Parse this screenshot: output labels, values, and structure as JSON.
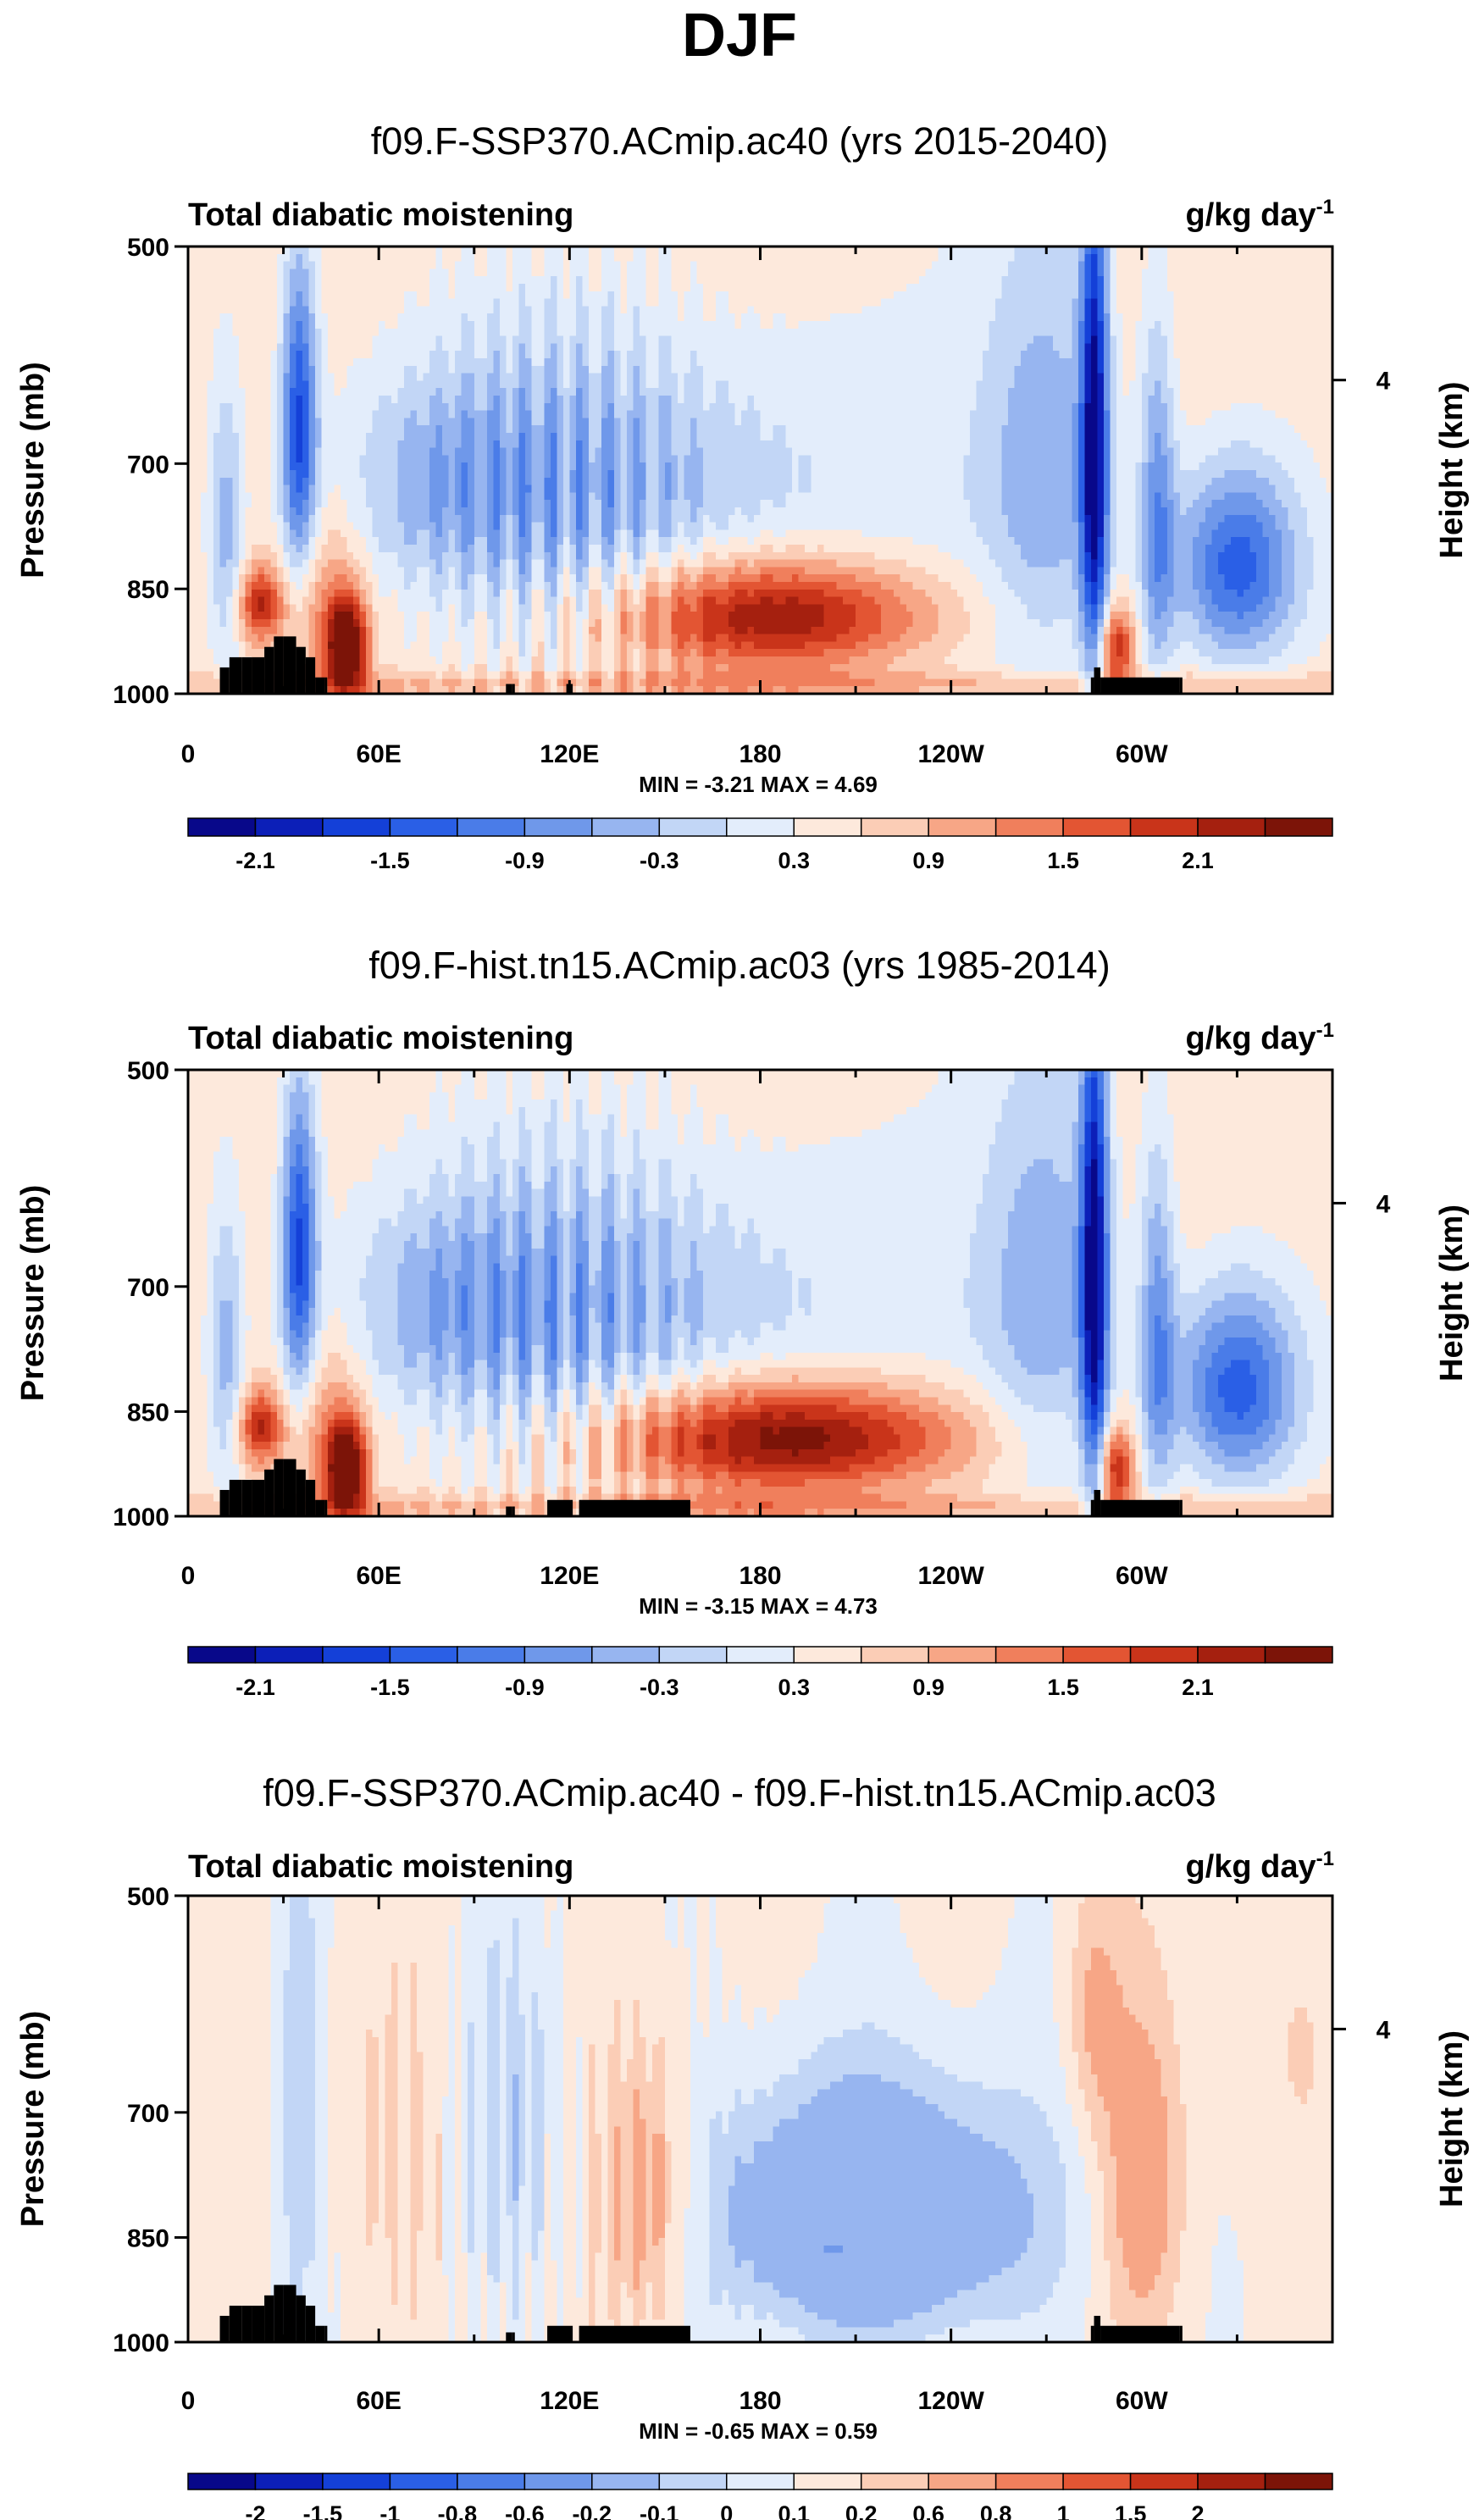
{
  "title": "DJF",
  "colors": {
    "palette": [
      "#08088a",
      "#0c1fb8",
      "#1440d8",
      "#2a5fe6",
      "#4a7ce8",
      "#6f98ea",
      "#97b5f0",
      "#c2d6f6",
      "#e3edfb",
      "#fde9dc",
      "#fbcdb6",
      "#f7a686",
      "#f07f5c",
      "#e35533",
      "#c9341a",
      "#a5200f",
      "#7c1408"
    ],
    "land": "#000000",
    "frame": "#000000"
  },
  "chart_data": [
    {
      "type": "contour",
      "title": "f09.F-SSP370.ACmip.ac40 (yrs 2015-2040)",
      "left_label": "Total diabatic moistening",
      "right_label": "g/kg day",
      "right_label_exp": "-1",
      "ylabel": "Pressure (mb)",
      "y2label": "Height (km)",
      "y_ticks": [
        "500",
        "700",
        "850",
        "1000"
      ],
      "y_tick_values": [
        500,
        700,
        850,
        1000
      ],
      "y2_ticks": [
        "4"
      ],
      "x_ticks": [
        "0",
        "60E",
        "120E",
        "180",
        "120W",
        "60W"
      ],
      "x_tick_values": [
        0,
        60,
        120,
        180,
        240,
        300
      ],
      "xlim": [
        0,
        360
      ],
      "ylim": [
        1000,
        500
      ],
      "min_max_text": "MIN = -3.21  MAX =  4.69",
      "min": -3.21,
      "max": 4.69,
      "colorbar_labels": [
        "-2.1",
        "-1.5",
        "-0.9",
        "-0.3",
        "0.3",
        "0.9",
        "1.5",
        "2.1"
      ],
      "levels": [
        -2.4,
        -2.1,
        -1.8,
        -1.5,
        -1.2,
        -0.9,
        -0.6,
        -0.3,
        0,
        0.3,
        0.6,
        0.9,
        1.2,
        1.5,
        1.8,
        2.1,
        2.4
      ],
      "features": [
        {
          "lon": 35,
          "p": 660,
          "value": -2.0
        },
        {
          "lon": 23,
          "p": 870,
          "value": 1.6
        },
        {
          "lon": 50,
          "p": 930,
          "value": 2.6
        },
        {
          "lon": 185,
          "p": 885,
          "value": 2.2
        },
        {
          "lon": 285,
          "p": 690,
          "value": -2.6
        },
        {
          "lon": 330,
          "p": 820,
          "value": -1.9
        },
        {
          "lon": 110,
          "p": 730,
          "value": -1.2
        }
      ]
    },
    {
      "type": "contour",
      "title": "f09.F-hist.tn15.ACmip.ac03 (yrs 1985-2014)",
      "left_label": "Total diabatic moistening",
      "right_label": "g/kg day",
      "right_label_exp": "-1",
      "ylabel": "Pressure (mb)",
      "y2label": "Height (km)",
      "y_ticks": [
        "500",
        "700",
        "850",
        "1000"
      ],
      "y_tick_values": [
        500,
        700,
        850,
        1000
      ],
      "y2_ticks": [
        "4"
      ],
      "x_ticks": [
        "0",
        "60E",
        "120E",
        "180",
        "120W",
        "60W"
      ],
      "x_tick_values": [
        0,
        60,
        120,
        180,
        240,
        300
      ],
      "xlim": [
        0,
        360
      ],
      "ylim": [
        1000,
        500
      ],
      "min_max_text": "MIN = -3.15  MAX =  4.73",
      "min": -3.15,
      "max": 4.73,
      "colorbar_labels": [
        "-2.1",
        "-1.5",
        "-0.9",
        "-0.3",
        "0.3",
        "0.9",
        "1.5",
        "2.1"
      ],
      "levels": [
        -2.4,
        -2.1,
        -1.8,
        -1.5,
        -1.2,
        -0.9,
        -0.6,
        -0.3,
        0,
        0.3,
        0.6,
        0.9,
        1.2,
        1.5,
        1.8,
        2.1,
        2.4
      ],
      "features": [
        {
          "lon": 35,
          "p": 660,
          "value": -2.0
        },
        {
          "lon": 23,
          "p": 870,
          "value": 1.6
        },
        {
          "lon": 50,
          "p": 930,
          "value": 2.6
        },
        {
          "lon": 190,
          "p": 880,
          "value": 2.5
        },
        {
          "lon": 285,
          "p": 690,
          "value": -2.6
        },
        {
          "lon": 330,
          "p": 820,
          "value": -1.9
        },
        {
          "lon": 110,
          "p": 730,
          "value": -1.2
        }
      ]
    },
    {
      "type": "contour",
      "title": "f09.F-SSP370.ACmip.ac40 - f09.F-hist.tn15.ACmip.ac03",
      "left_label": "Total diabatic moistening",
      "right_label": "g/kg day",
      "right_label_exp": "-1",
      "ylabel": "Pressure (mb)",
      "y2label": "Height (km)",
      "y_ticks": [
        "500",
        "700",
        "850",
        "1000"
      ],
      "y_tick_values": [
        500,
        700,
        850,
        1000
      ],
      "y2_ticks": [
        "4"
      ],
      "x_ticks": [
        "0",
        "60E",
        "120E",
        "180",
        "120W",
        "60W"
      ],
      "x_tick_values": [
        0,
        60,
        120,
        180,
        240,
        300
      ],
      "xlim": [
        0,
        360
      ],
      "ylim": [
        1000,
        500
      ],
      "min_max_text": "MIN = -0.65  MAX =  0.59",
      "min": -0.65,
      "max": 0.59,
      "colorbar_labels": [
        "-2",
        "-1.5",
        "-1",
        "-0.8",
        "-0.6",
        "-0.2",
        "-0.1",
        "0",
        "0.1",
        "0.2",
        "0.6",
        "0.8",
        "1",
        "1.5",
        "2"
      ],
      "levels": [
        -2.5,
        -2,
        -1.5,
        -1,
        -0.8,
        -0.6,
        -0.2,
        -0.1,
        0,
        0.1,
        0.2,
        0.6,
        0.8,
        1,
        1.5,
        2,
        2.5
      ],
      "features": [
        {
          "lon": 215,
          "p": 820,
          "value": -0.6
        },
        {
          "lon": 145,
          "p": 800,
          "value": 0.3
        },
        {
          "lon": 300,
          "p": 780,
          "value": 0.3
        },
        {
          "lon": 35,
          "p": 700,
          "value": -0.2
        },
        {
          "lon": 100,
          "p": 700,
          "value": -0.15
        }
      ]
    }
  ]
}
